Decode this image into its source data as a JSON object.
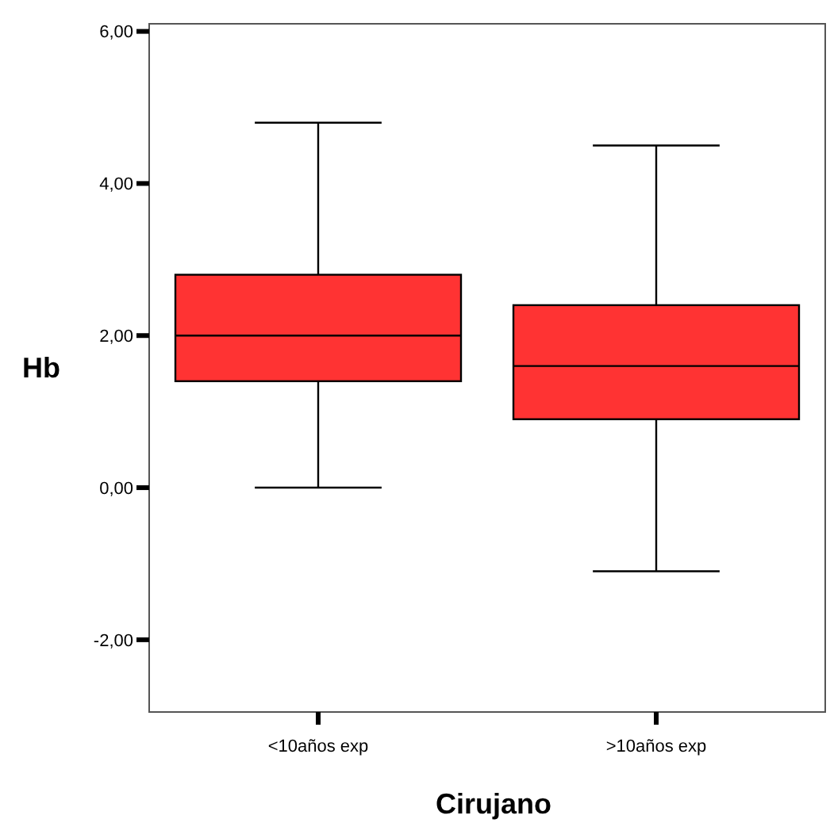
{
  "chart_data": {
    "type": "box",
    "xlabel": "Cirujano",
    "ylabel": "Hb",
    "categories": [
      "<10años exp",
      ">10años exp"
    ],
    "color": "#ff3333",
    "boxes": [
      {
        "low": 0,
        "q1": 1.4,
        "median": 2.0,
        "q3": 2.8,
        "high": 4.8
      },
      {
        "low": -1.1,
        "q1": 0.9,
        "median": 1.6,
        "q3": 2.4,
        "high": 4.5
      }
    ],
    "ylim": [
      -2.95,
      6.1
    ],
    "yticks": [
      {
        "value": -2,
        "label": "-2,00"
      },
      {
        "value": 0,
        "label": "0,00"
      },
      {
        "value": 2,
        "label": "2,00"
      },
      {
        "value": 4,
        "label": "4,00"
      },
      {
        "value": 6,
        "label": "6,00"
      }
    ],
    "grid": false
  }
}
